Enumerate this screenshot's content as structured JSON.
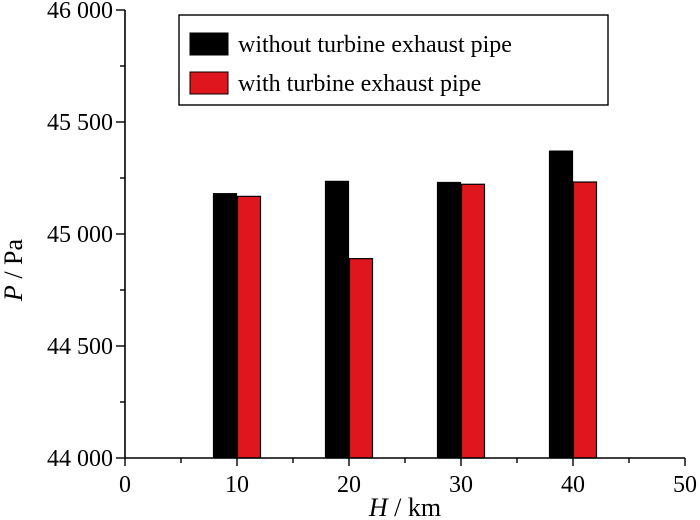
{
  "chart_data": {
    "type": "bar",
    "title": "",
    "xlabel": {
      "var": "H",
      "unit": " / km"
    },
    "ylabel": {
      "var": "P",
      "unit": " / Pa"
    },
    "xlim": [
      0,
      50
    ],
    "ylim": [
      44000,
      46000
    ],
    "xticks": [
      0,
      10,
      20,
      30,
      40,
      50
    ],
    "xtick_labels": [
      "0",
      "10",
      "20",
      "30",
      "40",
      "50"
    ],
    "yticks": [
      44000,
      44500,
      45000,
      45500,
      46000
    ],
    "ytick_labels": [
      "44 000",
      "44 500",
      "45 000",
      "45 500",
      "46 000"
    ],
    "categories": [
      10,
      20,
      30,
      40
    ],
    "series": [
      {
        "name": "without turbine exhaust pipe",
        "color": "#000000",
        "values": [
          45180,
          45235,
          45230,
          45370
        ]
      },
      {
        "name": "with turbine exhaust pipe",
        "color": "#e0161e",
        "values": [
          45168,
          44890,
          45222,
          45232
        ]
      }
    ],
    "legend_position": "top-right",
    "grid": false
  }
}
